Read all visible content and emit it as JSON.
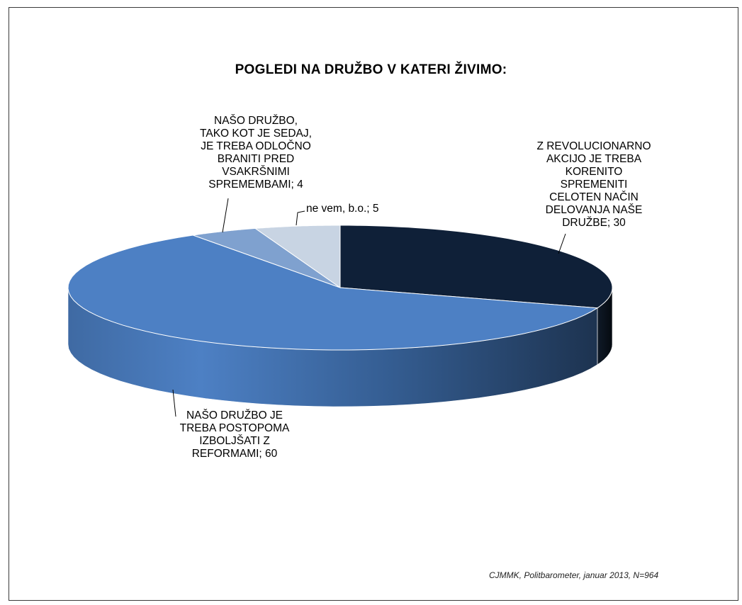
{
  "chart_data": {
    "type": "pie",
    "title": "POGLEDI NA DRUŽBO V KATERI ŽIVIMO:",
    "slices": [
      {
        "label": "Z REVOLUCIONARNO AKCIJO JE TREBA KORENITO SPREMENITI CELOTEN NAČIN DELOVANJA NAŠE DRUŽBE; 30",
        "value": 30,
        "color": "#0f2038"
      },
      {
        "label": "NAŠO DRUŽBO JE TREBA POSTOPOMA IZBOLJŠATI Z REFORMAMI; 60",
        "value": 60,
        "color": "#4d80c4"
      },
      {
        "label": "NAŠO DRUŽBO, TAKO KOT JE SEDAJ, JE TREBA ODLOČNO BRANITI PRED VSAKRŠNIMI SPREMEMBAMI; 4",
        "value": 4,
        "color": "#7fa1cf"
      },
      {
        "label": "ne vem, b.o.; 5",
        "value": 5,
        "color": "#c8d4e3"
      }
    ],
    "labels_lines": {
      "revolution": [
        "Z REVOLUCIONARNO",
        "AKCIJO JE TREBA",
        "KORENITO",
        "SPREMENITI",
        "CELOTEN NAČIN",
        "DELOVANJA NAŠE",
        "DRUŽBE; 30"
      ],
      "reform": [
        "NAŠO DRUŽBO JE",
        "TREBA POSTOPOMA",
        "IZBOLJŠATI Z",
        "REFORMAMI; 60"
      ],
      "defend": [
        "NAŠO DRUŽBO,",
        "TAKO KOT JE SEDAJ,",
        "JE TREBA ODLOČNO",
        "BRANITI PRED",
        "VSAKRŠNIMI",
        "SPREMEMBAMI; 4"
      ],
      "dontknow": [
        "ne vem, b.o.; 5"
      ]
    }
  },
  "source": "CJMMK, Politbarometer, januar 2013,  N=964"
}
